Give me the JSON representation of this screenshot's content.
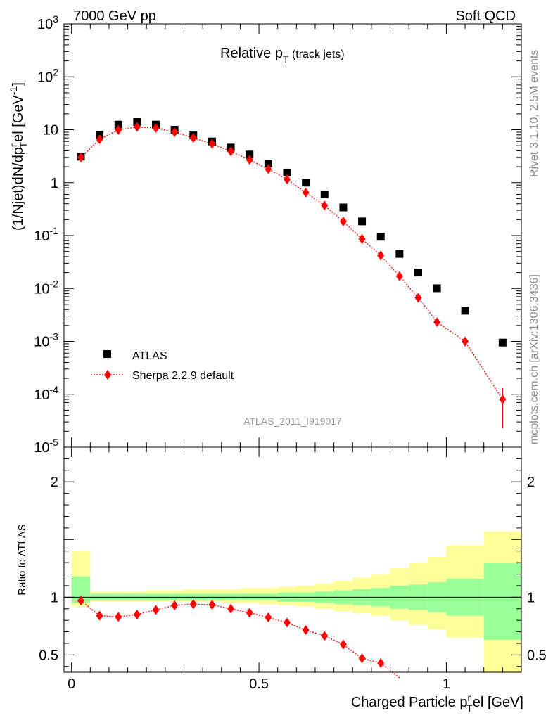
{
  "header": {
    "left": "7000 GeV pp",
    "right": "Soft QCD"
  },
  "side": {
    "rivet": "Rivet 3.1.10,  2.5M events",
    "mcplots": "mcplots.cern.ch [arXiv:1306.3436]"
  },
  "colors": {
    "data": "#000000",
    "mc": "#ff0000",
    "band_inner": "#99ff99",
    "band_outer": "#ffff99"
  },
  "chart_data": [
    {
      "type": "scatter",
      "title": "Relative p",
      "title_sub": "T",
      "title_tail": " (track jets)",
      "analysis_label": "ATLAS_2011_I919017",
      "ylabel": "(1/Njet)dN/dp",
      "ylabel_sub": "T",
      "ylabel_sup": "r",
      "ylabel_mid": "el [GeV",
      "ylabel_sup2": "-1",
      "ylabel_end": "]",
      "yscale": "log",
      "ylim": [
        1e-05,
        1000
      ],
      "xlim": [
        -0.02,
        1.2
      ],
      "y_tick_labels": [
        "10^-5",
        "10^-4",
        "10^-3",
        "10^-2",
        "10^-1",
        "1",
        "10",
        "10^2",
        "10^3"
      ],
      "legend": {
        "position": "bottom-left",
        "entries": [
          "ATLAS",
          "Sherpa 2.2.9 default"
        ]
      },
      "series": [
        {
          "name": "ATLAS",
          "marker": "square",
          "x": [
            0.025,
            0.075,
            0.125,
            0.175,
            0.225,
            0.275,
            0.325,
            0.375,
            0.425,
            0.475,
            0.525,
            0.575,
            0.625,
            0.675,
            0.725,
            0.775,
            0.825,
            0.875,
            0.925,
            0.975,
            1.05,
            1.15
          ],
          "y": [
            3.1,
            8.0,
            12.5,
            14.0,
            12.5,
            10.0,
            7.8,
            6.0,
            4.6,
            3.4,
            2.3,
            1.55,
            1.0,
            0.6,
            0.34,
            0.185,
            0.095,
            0.045,
            0.02,
            0.0101,
            0.0038,
            0.00095
          ]
        },
        {
          "name": "Sherpa 2.2.9 default",
          "marker": "diamond",
          "line": "dotted",
          "x": [
            0.025,
            0.075,
            0.125,
            0.175,
            0.225,
            0.275,
            0.325,
            0.375,
            0.425,
            0.475,
            0.525,
            0.575,
            0.625,
            0.675,
            0.725,
            0.775,
            0.825,
            0.875,
            0.925,
            0.975,
            1.05,
            1.15
          ],
          "y": [
            3.0,
            6.6,
            9.9,
            11.3,
            10.8,
            9.0,
            7.0,
            5.4,
            3.9,
            2.7,
            1.8,
            1.15,
            0.65,
            0.37,
            0.185,
            0.086,
            0.042,
            0.017,
            0.0067,
            0.0023,
            0.001,
            8e-05
          ],
          "y_err_low": [
            0,
            0,
            0,
            0,
            0,
            0,
            0,
            0,
            0,
            0,
            0,
            0,
            0,
            0,
            0,
            0,
            0,
            0,
            0,
            0.0003,
            0.0002,
            5.7e-05
          ],
          "y_err_high": [
            0,
            0,
            0,
            0,
            0,
            0,
            0,
            0,
            0,
            0,
            0,
            0,
            0,
            0,
            0,
            0,
            0,
            0,
            0,
            0.0003,
            0.0002,
            5e-05
          ]
        }
      ]
    },
    {
      "type": "scatter",
      "ylabel": "Ratio to ATLAS",
      "xlabel": "Charged Particle p",
      "xlabel_sub": "T",
      "xlabel_sup": "r",
      "xlabel_tail": "el [GeV]",
      "ylim": [
        0.35,
        2.3
      ],
      "xlim": [
        -0.02,
        1.2
      ],
      "x_ticks": [
        0,
        0.5,
        1
      ],
      "x_tick_labels": [
        "0",
        "0.5",
        "1"
      ],
      "y_ticks": [
        0.5,
        1,
        2
      ],
      "y_tick_labels": [
        "0.5",
        "1",
        "2"
      ],
      "bins": [
        [
          0.0,
          0.05
        ],
        [
          0.05,
          0.1
        ],
        [
          0.1,
          0.15
        ],
        [
          0.15,
          0.2
        ],
        [
          0.2,
          0.25
        ],
        [
          0.25,
          0.3
        ],
        [
          0.3,
          0.35
        ],
        [
          0.35,
          0.4
        ],
        [
          0.4,
          0.45
        ],
        [
          0.45,
          0.5
        ],
        [
          0.5,
          0.55
        ],
        [
          0.55,
          0.6
        ],
        [
          0.6,
          0.65
        ],
        [
          0.65,
          0.7
        ],
        [
          0.7,
          0.75
        ],
        [
          0.75,
          0.8
        ],
        [
          0.8,
          0.85
        ],
        [
          0.85,
          0.9
        ],
        [
          0.9,
          0.95
        ],
        [
          0.95,
          1.0
        ],
        [
          1.0,
          1.1
        ],
        [
          1.1,
          1.2
        ]
      ],
      "band_inner_low": [
        0.95,
        0.97,
        0.97,
        0.97,
        0.97,
        0.97,
        0.97,
        0.97,
        0.97,
        0.97,
        0.97,
        0.96,
        0.96,
        0.95,
        0.94,
        0.93,
        0.92,
        0.9,
        0.89,
        0.87,
        0.84,
        0.63
      ],
      "band_inner_high": [
        1.18,
        1.03,
        1.03,
        1.03,
        1.03,
        1.03,
        1.03,
        1.03,
        1.03,
        1.03,
        1.03,
        1.04,
        1.04,
        1.05,
        1.06,
        1.07,
        1.08,
        1.1,
        1.11,
        1.13,
        1.16,
        1.3
      ],
      "band_outer_low": [
        0.92,
        0.96,
        0.96,
        0.96,
        0.96,
        0.96,
        0.96,
        0.96,
        0.95,
        0.95,
        0.94,
        0.93,
        0.92,
        0.9,
        0.88,
        0.86,
        0.84,
        0.8,
        0.76,
        0.72,
        0.65,
        0.32
      ],
      "band_outer_high": [
        1.4,
        1.05,
        1.05,
        1.05,
        1.06,
        1.06,
        1.07,
        1.07,
        1.07,
        1.08,
        1.08,
        1.09,
        1.1,
        1.12,
        1.14,
        1.17,
        1.2,
        1.25,
        1.3,
        1.35,
        1.45,
        1.57
      ],
      "series": [
        {
          "name": "Sherpa 2.2.9 default",
          "marker": "diamond",
          "line": "dotted",
          "x": [
            0.025,
            0.075,
            0.125,
            0.175,
            0.225,
            0.275,
            0.325,
            0.375,
            0.425,
            0.475,
            0.525,
            0.575,
            0.625,
            0.675,
            0.725,
            0.775,
            0.825,
            0.875
          ],
          "y": [
            0.97,
            0.84,
            0.83,
            0.85,
            0.89,
            0.93,
            0.94,
            0.935,
            0.9,
            0.865,
            0.825,
            0.78,
            0.715,
            0.665,
            0.59,
            0.47,
            0.43,
            0.3
          ]
        }
      ]
    }
  ]
}
